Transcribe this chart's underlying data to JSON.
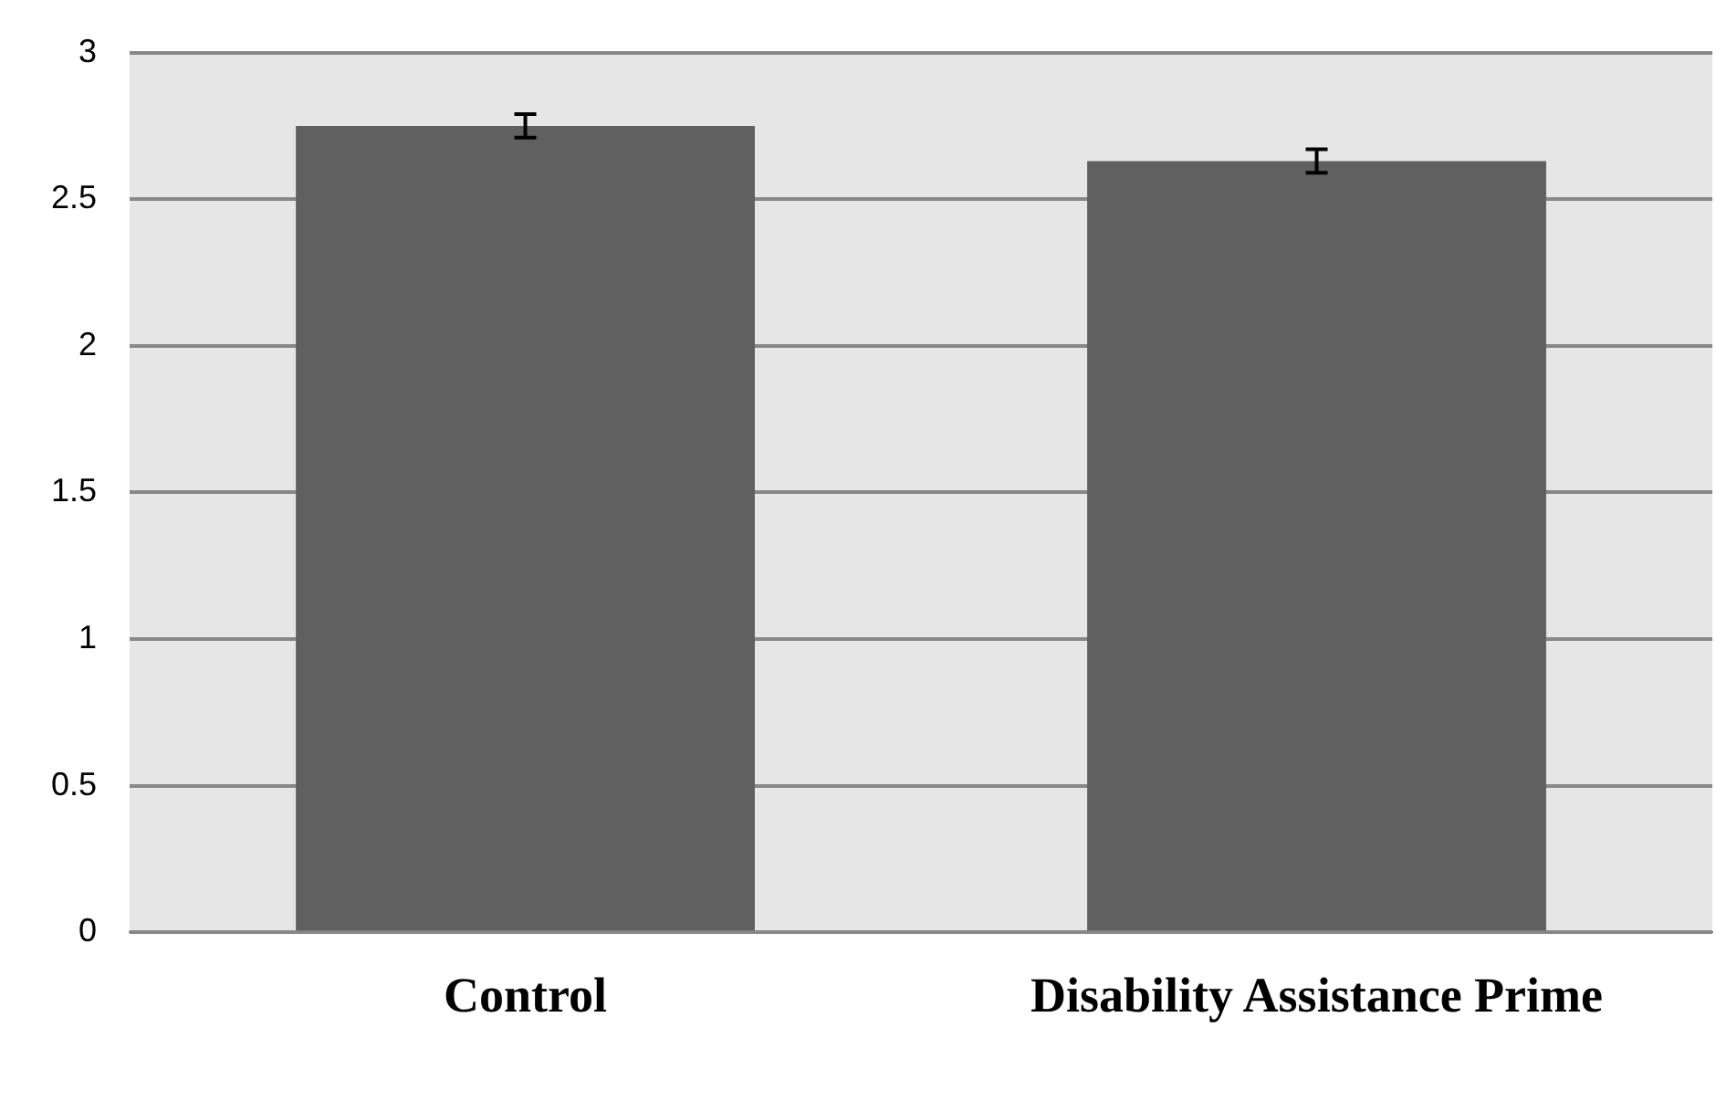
{
  "chart_data": {
    "type": "bar",
    "categories": [
      "Control",
      "Disability Assistance Prime"
    ],
    "values": [
      2.75,
      2.63
    ],
    "errors": [
      0.04,
      0.04
    ],
    "color": "#606060",
    "ylim": [
      0,
      3
    ],
    "yticks": [
      0,
      0.5,
      1,
      1.5,
      2,
      2.5,
      3
    ],
    "grid": "y",
    "legend": false
  }
}
